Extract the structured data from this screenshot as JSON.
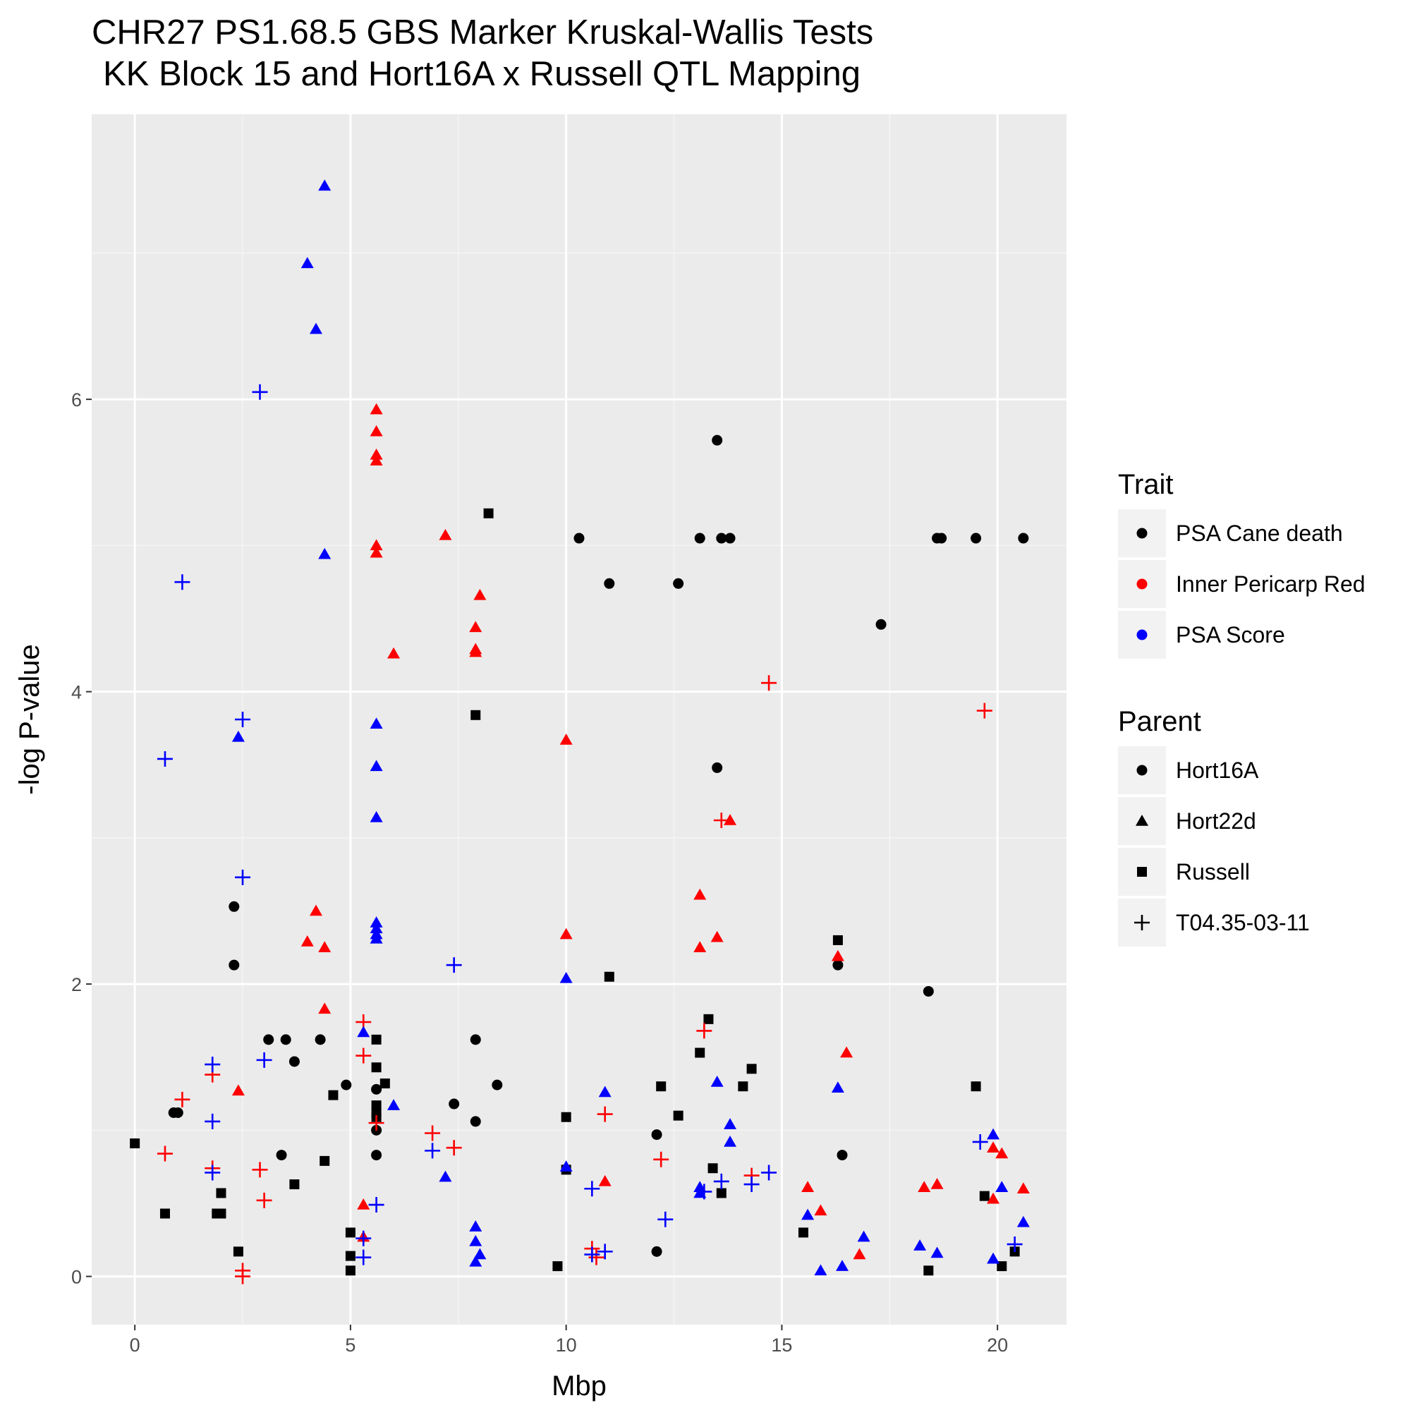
{
  "chart_data": {
    "type": "scatter",
    "title": "CHR27 PS1.68.5 GBS Marker Kruskal-Wallis Tests",
    "subtitle": "KK Block 15 and Hort16A x Russell QTL Mapping",
    "xlabel": "Mbp",
    "ylabel": "-log P-value",
    "xlim": [
      -1.0,
      21.6
    ],
    "ylim": [
      -0.33,
      7.95
    ],
    "x_ticks": [
      0,
      5,
      10,
      15,
      20
    ],
    "y_ticks": [
      0,
      2,
      4,
      6
    ],
    "grid": true,
    "legend_position": "right",
    "legends": [
      {
        "title": "Trait",
        "entries": [
          {
            "label": "PSA Cane death",
            "color": "#000000",
            "shape": "circle"
          },
          {
            "label": "Inner Pericarp Red",
            "color": "#ff0000",
            "shape": "circle"
          },
          {
            "label": "PSA Score",
            "color": "#0000ff",
            "shape": "circle"
          }
        ]
      },
      {
        "title": "Parent",
        "entries": [
          {
            "label": "Hort16A",
            "color": "#000000",
            "shape": "circle"
          },
          {
            "label": "Hort22d",
            "color": "#000000",
            "shape": "triangle"
          },
          {
            "label": "Russell",
            "color": "#000000",
            "shape": "square"
          },
          {
            "label": "T04.35-03-11",
            "color": "#000000",
            "shape": "plus"
          }
        ]
      }
    ],
    "series": [
      {
        "trait": "PSA Cane death",
        "parent": "Hort16A",
        "color": "#000000",
        "shape": "circle",
        "points": [
          [
            0.9,
            1.12
          ],
          [
            1.0,
            1.12
          ],
          [
            2.3,
            2.53
          ],
          [
            2.3,
            2.13
          ],
          [
            3.1,
            1.62
          ],
          [
            3.5,
            1.62
          ],
          [
            3.7,
            1.47
          ],
          [
            3.4,
            0.83
          ],
          [
            4.3,
            1.62
          ],
          [
            4.9,
            1.31
          ],
          [
            5.6,
            1.28
          ],
          [
            5.6,
            1.0
          ],
          [
            5.6,
            0.83
          ],
          [
            7.4,
            1.18
          ],
          [
            7.9,
            1.62
          ],
          [
            7.9,
            1.06
          ],
          [
            8.4,
            1.31
          ],
          [
            10.3,
            5.05
          ],
          [
            11.0,
            4.74
          ],
          [
            12.1,
            0.97
          ],
          [
            12.1,
            0.17
          ],
          [
            12.6,
            4.74
          ],
          [
            13.1,
            5.05
          ],
          [
            13.5,
            5.72
          ],
          [
            13.5,
            3.48
          ],
          [
            13.6,
            5.05
          ],
          [
            13.8,
            5.05
          ],
          [
            16.3,
            2.13
          ],
          [
            16.4,
            0.83
          ],
          [
            17.3,
            4.46
          ],
          [
            18.4,
            1.95
          ],
          [
            18.6,
            5.05
          ],
          [
            18.7,
            5.05
          ],
          [
            19.5,
            5.05
          ],
          [
            20.6,
            5.05
          ]
        ]
      },
      {
        "trait": "PSA Cane death",
        "parent": "Russell",
        "color": "#000000",
        "shape": "square",
        "points": [
          [
            0.0,
            0.91
          ],
          [
            0.7,
            0.43
          ],
          [
            1.9,
            0.43
          ],
          [
            2.0,
            0.43
          ],
          [
            2.0,
            0.57
          ],
          [
            2.4,
            0.17
          ],
          [
            3.7,
            0.63
          ],
          [
            4.4,
            0.79
          ],
          [
            4.6,
            1.24
          ],
          [
            5.0,
            0.3
          ],
          [
            5.0,
            0.14
          ],
          [
            5.0,
            0.04
          ],
          [
            5.6,
            1.62
          ],
          [
            5.6,
            1.43
          ],
          [
            5.6,
            1.17
          ],
          [
            5.6,
            1.12
          ],
          [
            5.6,
            1.09
          ],
          [
            5.8,
            1.32
          ],
          [
            7.9,
            3.84
          ],
          [
            8.2,
            5.22
          ],
          [
            9.8,
            0.07
          ],
          [
            10.0,
            1.09
          ],
          [
            10.0,
            0.73
          ],
          [
            11.0,
            2.05
          ],
          [
            12.2,
            1.3
          ],
          [
            12.6,
            1.1
          ],
          [
            13.1,
            1.53
          ],
          [
            13.3,
            1.76
          ],
          [
            13.4,
            0.74
          ],
          [
            13.6,
            0.57
          ],
          [
            14.1,
            1.3
          ],
          [
            14.3,
            1.42
          ],
          [
            15.5,
            0.3
          ],
          [
            16.3,
            2.3
          ],
          [
            18.4,
            0.04
          ],
          [
            19.5,
            1.3
          ],
          [
            19.7,
            0.55
          ],
          [
            20.1,
            0.07
          ],
          [
            20.4,
            0.17
          ]
        ]
      },
      {
        "trait": "Inner Pericarp Red",
        "parent": "Hort22d",
        "color": "#ff0000",
        "shape": "triangle",
        "points": [
          [
            2.4,
            1.27
          ],
          [
            4.0,
            2.29
          ],
          [
            4.2,
            2.5
          ],
          [
            4.4,
            2.25
          ],
          [
            4.4,
            1.83
          ],
          [
            5.3,
            0.49
          ],
          [
            5.3,
            0.27
          ],
          [
            5.6,
            5.93
          ],
          [
            5.6,
            5.78
          ],
          [
            5.6,
            5.62
          ],
          [
            5.6,
            5.58
          ],
          [
            5.6,
            5.0
          ],
          [
            5.6,
            4.95
          ],
          [
            6.0,
            4.26
          ],
          [
            7.2,
            5.07
          ],
          [
            7.9,
            4.44
          ],
          [
            7.9,
            4.29
          ],
          [
            7.9,
            4.27
          ],
          [
            8.0,
            4.66
          ],
          [
            10.0,
            3.67
          ],
          [
            10.0,
            2.34
          ],
          [
            10.9,
            0.65
          ],
          [
            13.1,
            2.61
          ],
          [
            13.1,
            2.25
          ],
          [
            13.5,
            2.32
          ],
          [
            13.8,
            3.12
          ],
          [
            15.6,
            0.61
          ],
          [
            15.9,
            0.45
          ],
          [
            16.3,
            2.19
          ],
          [
            16.5,
            1.53
          ],
          [
            16.8,
            0.15
          ],
          [
            18.3,
            0.61
          ],
          [
            18.6,
            0.63
          ],
          [
            19.9,
            0.88
          ],
          [
            20.1,
            0.84
          ],
          [
            20.6,
            0.6
          ],
          [
            19.9,
            0.53
          ]
        ]
      },
      {
        "trait": "Inner Pericarp Red",
        "parent": "T04.35-03-11",
        "color": "#ff0000",
        "shape": "plus",
        "points": [
          [
            0.7,
            0.84
          ],
          [
            1.1,
            1.21
          ],
          [
            1.8,
            1.38
          ],
          [
            1.8,
            0.74
          ],
          [
            2.5,
            0.04
          ],
          [
            2.5,
            0.0
          ],
          [
            2.9,
            0.73
          ],
          [
            3.0,
            0.52
          ],
          [
            5.3,
            1.74
          ],
          [
            5.3,
            1.51
          ],
          [
            5.6,
            1.05
          ],
          [
            6.9,
            0.98
          ],
          [
            7.4,
            0.88
          ],
          [
            10.6,
            0.19
          ],
          [
            10.7,
            0.13
          ],
          [
            10.9,
            1.11
          ],
          [
            12.2,
            0.8
          ],
          [
            13.2,
            1.68
          ],
          [
            13.6,
            3.12
          ],
          [
            14.3,
            0.69
          ],
          [
            14.7,
            4.06
          ],
          [
            19.7,
            3.87
          ]
        ]
      },
      {
        "trait": "PSA Score",
        "parent": "Hort22d",
        "color": "#0000ff",
        "shape": "triangle",
        "points": [
          [
            2.4,
            3.69
          ],
          [
            4.0,
            6.93
          ],
          [
            4.2,
            6.48
          ],
          [
            4.4,
            7.46
          ],
          [
            4.4,
            4.94
          ],
          [
            5.3,
            1.67
          ],
          [
            5.6,
            3.78
          ],
          [
            5.6,
            3.49
          ],
          [
            5.6,
            3.14
          ],
          [
            5.6,
            2.42
          ],
          [
            5.6,
            2.38
          ],
          [
            5.6,
            2.34
          ],
          [
            5.6,
            2.31
          ],
          [
            6.0,
            1.17
          ],
          [
            7.2,
            0.68
          ],
          [
            7.9,
            0.34
          ],
          [
            7.9,
            0.24
          ],
          [
            7.9,
            0.1
          ],
          [
            8.0,
            0.15
          ],
          [
            10.0,
            2.04
          ],
          [
            10.0,
            0.75
          ],
          [
            10.9,
            1.26
          ],
          [
            13.1,
            0.61
          ],
          [
            13.1,
            0.57
          ],
          [
            13.5,
            1.33
          ],
          [
            13.8,
            1.04
          ],
          [
            13.8,
            0.92
          ],
          [
            15.6,
            0.42
          ],
          [
            15.9,
            0.04
          ],
          [
            16.3,
            1.29
          ],
          [
            16.4,
            0.07
          ],
          [
            16.9,
            0.27
          ],
          [
            18.2,
            0.21
          ],
          [
            18.6,
            0.16
          ],
          [
            19.9,
            0.12
          ],
          [
            19.9,
            0.97
          ],
          [
            20.1,
            0.61
          ],
          [
            20.6,
            0.37
          ]
        ]
      },
      {
        "trait": "PSA Score",
        "parent": "T04.35-03-11",
        "color": "#0000ff",
        "shape": "plus",
        "points": [
          [
            0.7,
            3.54
          ],
          [
            1.1,
            4.75
          ],
          [
            1.8,
            1.45
          ],
          [
            1.8,
            1.06
          ],
          [
            1.8,
            0.71
          ],
          [
            2.5,
            3.81
          ],
          [
            2.5,
            2.73
          ],
          [
            2.9,
            6.05
          ],
          [
            3.0,
            1.48
          ],
          [
            5.3,
            0.26
          ],
          [
            5.3,
            0.13
          ],
          [
            5.6,
            0.49
          ],
          [
            6.9,
            0.86
          ],
          [
            7.4,
            2.13
          ],
          [
            10.6,
            0.6
          ],
          [
            10.6,
            0.15
          ],
          [
            10.9,
            0.17
          ],
          [
            12.3,
            0.39
          ],
          [
            13.2,
            0.58
          ],
          [
            13.6,
            0.65
          ],
          [
            14.3,
            0.63
          ],
          [
            14.7,
            0.71
          ],
          [
            19.6,
            0.92
          ],
          [
            20.4,
            0.22
          ]
        ]
      }
    ]
  }
}
